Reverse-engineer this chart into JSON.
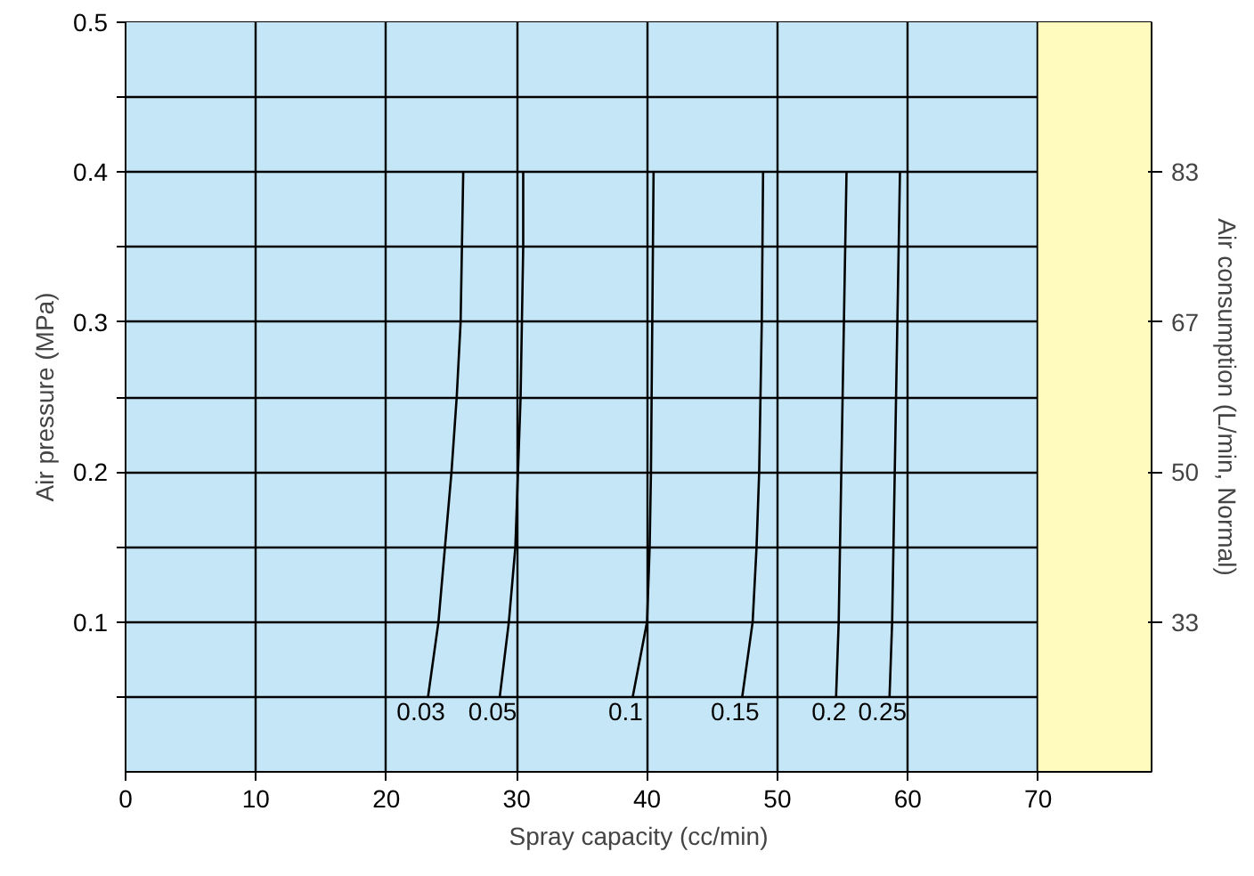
{
  "chart_data": {
    "type": "line",
    "xlabel": "Spray capacity (cc/min)",
    "ylabel": "Air pressure (MPa)",
    "y2label": "Air consumption (L/min, Normal)",
    "xlim": [
      0,
      78.7
    ],
    "ylim": [
      0,
      0.5
    ],
    "y2lim": [
      16.67,
      100
    ],
    "xticks": [
      0,
      10,
      20,
      30,
      40,
      50,
      60,
      70
    ],
    "yticks": [
      {
        "value": 0.05,
        "label": null
      },
      0.1,
      {
        "value": 0.15,
        "label": null
      },
      0.2,
      {
        "value": 0.25,
        "label": null
      },
      0.3,
      {
        "value": 0.35,
        "label": null
      },
      0.4,
      {
        "value": 0.45,
        "label": null
      },
      0.5
    ],
    "y2ticks": [
      {
        "value": 33.33,
        "label": "33"
      },
      {
        "value": 50,
        "label": "50"
      },
      {
        "value": 66.67,
        "label": "67"
      },
      {
        "value": 83.33,
        "label": "83"
      }
    ],
    "grid": true,
    "marker": "none",
    "line_style": "solid",
    "bands": [
      {
        "axis": "x",
        "from": 0,
        "to": 70,
        "color": "#c4e6f7"
      },
      {
        "axis": "x",
        "from": 70,
        "to": 78.7,
        "color": "#fffbbe"
      }
    ],
    "series": [
      {
        "name": "0.03",
        "color": "#000000",
        "x": [
          23.2,
          24.0,
          24.5,
          25.0,
          25.4,
          25.7,
          25.8,
          25.9
        ],
        "values": [
          0.05,
          0.1,
          0.15,
          0.2,
          0.25,
          0.3,
          0.35,
          0.4
        ]
      },
      {
        "name": "0.05",
        "color": "#000000",
        "x": [
          28.7,
          29.4,
          29.9,
          30.1,
          30.3,
          30.4,
          30.5,
          30.5
        ],
        "values": [
          0.05,
          0.1,
          0.15,
          0.2,
          0.25,
          0.3,
          0.35,
          0.4
        ]
      },
      {
        "name": "0.1",
        "color": "#000000",
        "x": [
          38.9,
          40.0,
          40.2,
          40.3,
          40.4,
          40.5
        ],
        "values": [
          0.05,
          0.1,
          0.15,
          0.2,
          0.3,
          0.4
        ]
      },
      {
        "name": "0.15",
        "color": "#000000",
        "x": [
          47.3,
          48.1,
          48.4,
          48.6,
          48.8,
          48.9
        ],
        "values": [
          0.05,
          0.1,
          0.15,
          0.2,
          0.3,
          0.4
        ]
      },
      {
        "name": "0.2",
        "color": "#000000",
        "x": [
          54.5,
          54.7,
          54.9,
          55.1,
          55.3
        ],
        "values": [
          0.05,
          0.1,
          0.2,
          0.3,
          0.4
        ]
      },
      {
        "name": "0.25",
        "color": "#000000",
        "x": [
          58.6,
          58.8,
          59.0,
          59.2,
          59.4
        ],
        "values": [
          0.05,
          0.1,
          0.2,
          0.3,
          0.4
        ]
      }
    ]
  }
}
